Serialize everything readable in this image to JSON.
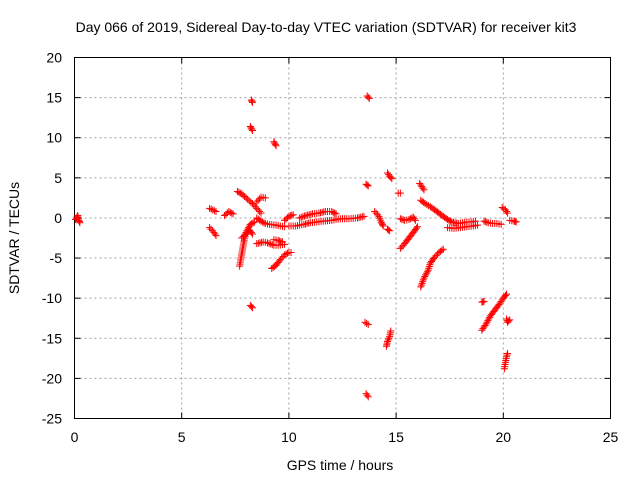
{
  "chart_data": {
    "type": "scatter",
    "title": "Day 066 of 2019, Sidereal Day-to-day VTEC variation (SDTVAR) for receiver kit3",
    "xlabel": "GPS time / hours",
    "ylabel": "SDTVAR / TECUs",
    "xlim": [
      0,
      25
    ],
    "ylim": [
      -25,
      20
    ],
    "xticks": [
      0,
      5,
      10,
      15,
      20,
      25
    ],
    "yticks": [
      -25,
      -20,
      -15,
      -10,
      -5,
      0,
      5,
      10,
      15,
      20
    ],
    "grid": true,
    "marker": "+",
    "series_color": "#ff0000",
    "segments": [
      [
        [
          0.05,
          -0.2
        ],
        [
          0.15,
          0.3
        ],
        [
          0.2,
          -0.3
        ],
        [
          0.25,
          -0.6
        ]
      ],
      [
        [
          6.3,
          1.2
        ],
        [
          6.45,
          1.0
        ],
        [
          6.6,
          0.8
        ]
      ],
      [
        [
          6.3,
          -1.2
        ],
        [
          6.5,
          -1.8
        ],
        [
          6.6,
          -2.2
        ]
      ],
      [
        [
          7.0,
          0.3
        ],
        [
          7.2,
          0.8
        ],
        [
          7.4,
          0.5
        ]
      ],
      [
        [
          7.6,
          3.3
        ],
        [
          7.8,
          3.0
        ],
        [
          8.0,
          2.5
        ],
        [
          8.3,
          1.8
        ],
        [
          8.5,
          1.2
        ],
        [
          8.7,
          0.6
        ]
      ],
      [
        [
          7.7,
          -6.0
        ],
        [
          7.8,
          -4.5
        ],
        [
          7.9,
          -3.0
        ],
        [
          8.0,
          -1.8
        ],
        [
          8.2,
          -0.8
        ],
        [
          8.4,
          -0.5
        ]
      ],
      [
        [
          7.8,
          -2.5
        ],
        [
          8.0,
          -2.0
        ],
        [
          8.15,
          -1.5
        ],
        [
          8.3,
          -2.0
        ]
      ],
      [
        [
          8.5,
          2.0
        ],
        [
          8.7,
          2.6
        ],
        [
          8.9,
          2.5
        ]
      ],
      [
        [
          8.25,
          14.7
        ],
        [
          8.3,
          14.4
        ]
      ],
      [
        [
          8.2,
          11.4
        ],
        [
          8.3,
          10.9
        ]
      ],
      [
        [
          8.2,
          -10.9
        ],
        [
          8.3,
          -11.2
        ]
      ],
      [
        [
          9.3,
          9.5
        ],
        [
          9.4,
          9.0
        ]
      ],
      [
        [
          8.5,
          0.0
        ],
        [
          8.7,
          -0.4
        ],
        [
          8.9,
          -0.7
        ],
        [
          9.1,
          -0.8
        ],
        [
          9.4,
          -0.9
        ],
        [
          9.6,
          -1.0
        ],
        [
          9.8,
          -1.1
        ]
      ],
      [
        [
          8.5,
          -3.2
        ],
        [
          8.8,
          -3.0
        ],
        [
          9.0,
          -3.1
        ],
        [
          9.3,
          -3.4
        ],
        [
          9.5,
          -3.4
        ],
        [
          9.8,
          -3.3
        ]
      ],
      [
        [
          9.2,
          -6.3
        ],
        [
          9.4,
          -5.9
        ],
        [
          9.6,
          -5.2
        ],
        [
          9.8,
          -4.6
        ],
        [
          10.0,
          -4.3
        ],
        [
          10.1,
          -4.3
        ]
      ],
      [
        [
          9.3,
          -2.7
        ],
        [
          9.5,
          -2.8
        ],
        [
          9.7,
          -3.0
        ]
      ],
      [
        [
          9.8,
          -0.3
        ],
        [
          10.0,
          0.2
        ],
        [
          10.2,
          0.4
        ]
      ],
      [
        [
          10.5,
          0.0
        ],
        [
          10.8,
          0.3
        ],
        [
          11.1,
          0.5
        ],
        [
          11.4,
          0.6
        ],
        [
          11.7,
          0.8
        ],
        [
          12.0,
          0.8
        ],
        [
          12.2,
          0.5
        ]
      ],
      [
        [
          10.0,
          -1.0
        ],
        [
          10.3,
          -1.0
        ],
        [
          10.7,
          -0.8
        ],
        [
          11.0,
          -0.6
        ],
        [
          11.3,
          -0.5
        ],
        [
          11.6,
          -0.4
        ],
        [
          12.0,
          -0.3
        ],
        [
          12.4,
          -0.1
        ],
        [
          12.8,
          -0.1
        ],
        [
          13.2,
          0.0
        ],
        [
          13.5,
          0.2
        ]
      ],
      [
        [
          13.65,
          15.2
        ],
        [
          13.75,
          14.9
        ]
      ],
      [
        [
          13.6,
          4.2
        ],
        [
          13.7,
          4.0
        ]
      ],
      [
        [
          13.55,
          -13.0
        ],
        [
          13.7,
          -13.3
        ]
      ],
      [
        [
          13.6,
          -21.9
        ],
        [
          13.7,
          -22.3
        ]
      ],
      [
        [
          14.0,
          0.8
        ],
        [
          14.2,
          0.2
        ],
        [
          14.3,
          -0.5
        ],
        [
          14.4,
          -1.0
        ]
      ],
      [
        [
          14.6,
          5.6
        ],
        [
          14.7,
          5.2
        ],
        [
          14.8,
          4.9
        ]
      ],
      [
        [
          14.6,
          -1.4
        ],
        [
          14.7,
          -1.6
        ]
      ],
      [
        [
          14.55,
          -16.0
        ],
        [
          14.6,
          -15.4
        ],
        [
          14.7,
          -14.8
        ],
        [
          14.75,
          -14.1
        ]
      ],
      [
        [
          15.1,
          3.1
        ],
        [
          15.2,
          3.1
        ]
      ],
      [
        [
          15.2,
          -0.1
        ],
        [
          15.4,
          -0.3
        ],
        [
          15.6,
          -0.2
        ],
        [
          15.8,
          0.1
        ],
        [
          15.9,
          -0.3
        ]
      ],
      [
        [
          15.2,
          -3.8
        ],
        [
          15.4,
          -3.2
        ],
        [
          15.6,
          -2.5
        ],
        [
          15.8,
          -1.8
        ],
        [
          16.0,
          -1.1
        ]
      ],
      [
        [
          16.1,
          4.3
        ],
        [
          16.2,
          3.9
        ],
        [
          16.3,
          3.5
        ]
      ],
      [
        [
          16.15,
          2.2
        ],
        [
          16.35,
          1.8
        ],
        [
          16.6,
          1.4
        ],
        [
          16.8,
          1.0
        ],
        [
          17.0,
          0.6
        ],
        [
          17.2,
          0.2
        ],
        [
          17.4,
          -0.2
        ],
        [
          17.6,
          -0.5
        ],
        [
          17.9,
          -0.7
        ],
        [
          18.1,
          -0.6
        ],
        [
          18.3,
          -0.5
        ],
        [
          18.5,
          -0.5
        ],
        [
          18.7,
          -0.4
        ]
      ],
      [
        [
          16.15,
          -8.6
        ],
        [
          16.3,
          -7.5
        ],
        [
          16.5,
          -6.5
        ],
        [
          16.6,
          -5.6
        ],
        [
          16.8,
          -4.9
        ],
        [
          17.0,
          -4.3
        ],
        [
          17.2,
          -3.9
        ]
      ],
      [
        [
          17.4,
          -1.2
        ],
        [
          17.7,
          -1.3
        ],
        [
          18.0,
          -1.2
        ],
        [
          18.3,
          -1.1
        ],
        [
          18.6,
          -1.0
        ],
        [
          18.8,
          -0.9
        ]
      ],
      [
        [
          19.0,
          -10.5
        ],
        [
          19.1,
          -10.4
        ]
      ],
      [
        [
          19.0,
          -14.0
        ],
        [
          19.2,
          -13.2
        ],
        [
          19.4,
          -12.2
        ],
        [
          19.6,
          -11.5
        ],
        [
          19.8,
          -10.8
        ],
        [
          20.0,
          -10.0
        ],
        [
          20.15,
          -9.5
        ]
      ],
      [
        [
          19.1,
          -0.4
        ],
        [
          19.3,
          -0.6
        ],
        [
          19.5,
          -0.7
        ],
        [
          19.7,
          -0.7
        ],
        [
          19.9,
          -0.8
        ]
      ],
      [
        [
          19.95,
          1.3
        ],
        [
          20.1,
          1.0
        ],
        [
          20.2,
          0.6
        ]
      ],
      [
        [
          20.15,
          -12.6
        ],
        [
          20.2,
          -13.0
        ],
        [
          20.3,
          -12.7
        ]
      ],
      [
        [
          20.05,
          -18.8
        ],
        [
          20.1,
          -18.0
        ],
        [
          20.15,
          -17.3
        ],
        [
          20.2,
          -16.9
        ]
      ],
      [
        [
          20.3,
          -0.3
        ],
        [
          20.5,
          -0.4
        ],
        [
          20.6,
          -0.5
        ]
      ]
    ]
  }
}
